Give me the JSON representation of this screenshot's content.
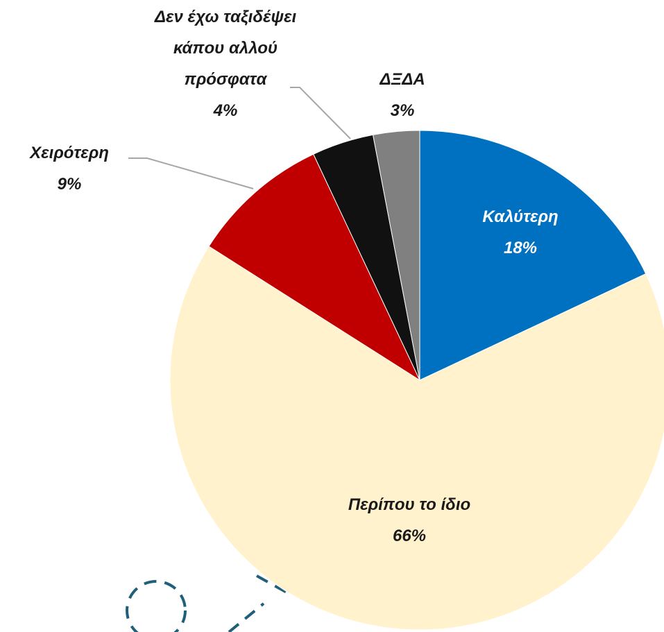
{
  "chart_data": {
    "type": "pie",
    "categories": [
      "Καλύτερη",
      "Περίπου το ίδιο",
      "Χειρότερη",
      "Δεν έχω ταξιδέψει κάπου αλλού πρόσφατα",
      "ΔΞΔΑ"
    ],
    "values": [
      18,
      66,
      9,
      4,
      3
    ],
    "value_labels": [
      "18%",
      "66%",
      "9%",
      "4%",
      "3%"
    ],
    "colors": [
      "#0070c0",
      "#fff2cc",
      "#c00000",
      "#111111",
      "#808080"
    ]
  }
}
